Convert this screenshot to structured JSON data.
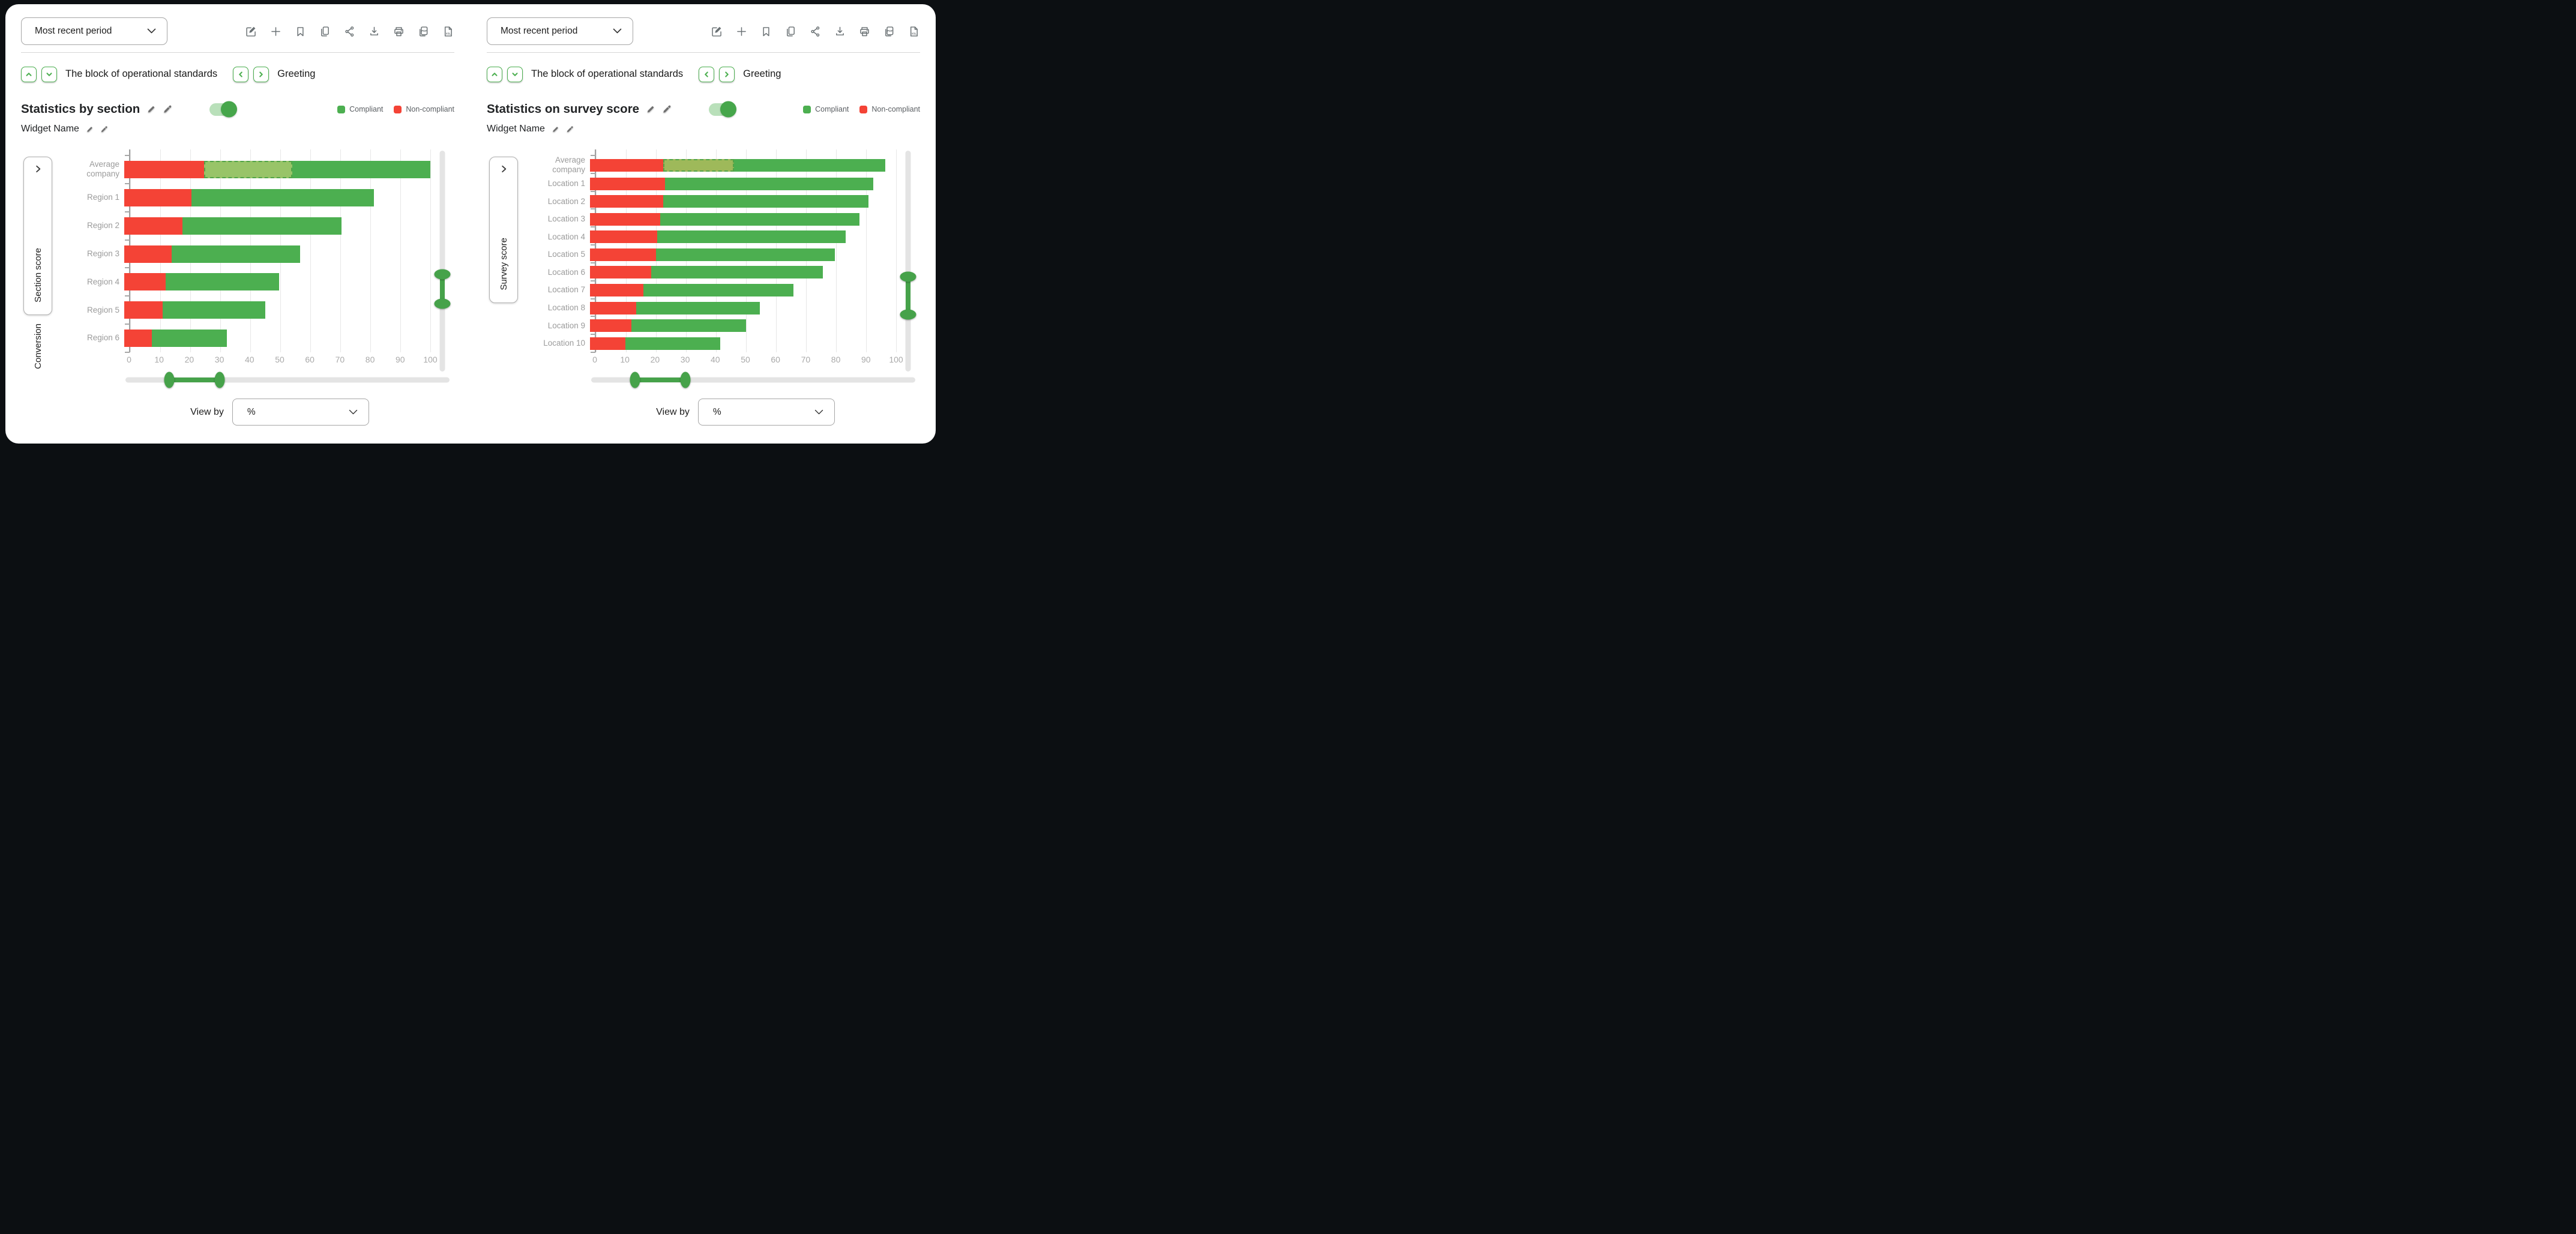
{
  "colors": {
    "accent_green": "#4caf50",
    "slider_green": "#46a24a",
    "compliant": "#4caf50",
    "non_compliant": "#f44336",
    "grid_line": "#e7e7e7",
    "axis_line": "#9e9e9e",
    "category_label_gray": "#9b9b9b",
    "icon_gray": "#6a7174"
  },
  "panels": [
    {
      "period_selector": {
        "value": "Most recent period",
        "icon": "chevron-down-icon"
      },
      "toolbar": [
        {
          "name": "edit"
        },
        {
          "name": "add"
        },
        {
          "name": "bookmark"
        },
        {
          "name": "copy"
        },
        {
          "name": "share"
        },
        {
          "name": "download"
        },
        {
          "name": "print"
        },
        {
          "name": "pdf",
          "label": "PDF"
        },
        {
          "name": "xsl",
          "label": "XSL"
        }
      ],
      "nav": {
        "block_label": "The block of operational standards",
        "page_label": "Greeting"
      },
      "widget": {
        "title": "Statistics by section",
        "subtitle": "Widget Name"
      },
      "legend": [
        {
          "label": "Compliant",
          "color": "#4caf50"
        },
        {
          "label": "Non-compliant",
          "color": "#f44336"
        }
      ],
      "side_panel": {
        "tab_label": "Section score",
        "below_label": "Conversion"
      },
      "view_by": {
        "label": "View by",
        "value": "%"
      },
      "chart_data": {
        "type": "bar",
        "orientation": "horizontal",
        "stacked": true,
        "categories": [
          "Average company",
          "Region 1",
          "Region 2",
          "Region 3",
          "Region 4",
          "Region 5",
          "Region 6"
        ],
        "series": [
          {
            "name": "Non-compliant",
            "color": "#f44336",
            "values": [
              26,
              22,
              19,
              15.5,
              13.5,
              12.5,
              9
            ]
          },
          {
            "name": "Compliant",
            "color": "#4caf50",
            "values": [
              74,
              59.5,
              52,
              42,
              37,
              33.5,
              24.5
            ]
          }
        ],
        "totals": [
          100,
          81.5,
          71,
          57.5,
          50.5,
          46,
          33.5
        ],
        "highlight_range": {
          "category_index": 0,
          "from": 26,
          "to": 55,
          "fill": "#98c468",
          "border": "#52a447"
        },
        "xlim": [
          0,
          100
        ],
        "x_ticks": [
          0,
          10,
          20,
          30,
          40,
          50,
          60,
          70,
          80,
          90,
          100
        ],
        "grid": true,
        "legend_position": "top-right",
        "x_range_slider": {
          "from_pct": 13.5,
          "to_pct": 29
        },
        "y_range_slider": {
          "from_pct": 56,
          "to_pct": 69
        }
      }
    },
    {
      "period_selector": {
        "value": "Most recent period",
        "icon": "chevron-down-icon"
      },
      "toolbar": [
        {
          "name": "edit"
        },
        {
          "name": "add"
        },
        {
          "name": "bookmark"
        },
        {
          "name": "copy"
        },
        {
          "name": "share"
        },
        {
          "name": "download"
        },
        {
          "name": "print"
        },
        {
          "name": "pdf",
          "label": "PDF"
        },
        {
          "name": "xsl",
          "label": "XSL"
        }
      ],
      "nav": {
        "block_label": "The block of operational standards",
        "page_label": "Greeting"
      },
      "widget": {
        "title": "Statistics on survey score",
        "subtitle": "Widget Name"
      },
      "legend": [
        {
          "label": "Compliant",
          "color": "#4caf50"
        },
        {
          "label": "Non-compliant",
          "color": "#f44336"
        }
      ],
      "side_panel": {
        "tab_label": "Survey score"
      },
      "view_by": {
        "label": "View by",
        "value": "%"
      },
      "chart_data": {
        "type": "bar",
        "orientation": "horizontal",
        "stacked": true,
        "categories": [
          "Average company",
          "Location 1",
          "Location 2",
          "Location 3",
          "Location 4",
          "Location 5",
          "Location 6",
          "Location 7",
          "Location 8",
          "Location 9",
          "Location 10"
        ],
        "series": [
          {
            "name": "Non-compliant",
            "color": "#f44336",
            "values": [
              24,
              24.5,
              24,
              23,
              22,
              21.5,
              20,
              17.5,
              15,
              13.5,
              11.5
            ]
          },
          {
            "name": "Compliant",
            "color": "#4caf50",
            "values": [
              72.5,
              68,
              67,
              65,
              61.5,
              58.5,
              56,
              49,
              40.5,
              37.5,
              31
            ]
          }
        ],
        "totals": [
          96.5,
          92.5,
          91,
          88,
          83.5,
          80,
          76,
          66.5,
          55.5,
          51,
          42.5
        ],
        "highlight_range": {
          "category_index": 0,
          "from": 24,
          "to": 47,
          "fill": "#9eb95a",
          "border": "#52a447"
        },
        "xlim": [
          0,
          100
        ],
        "x_ticks": [
          0,
          10,
          20,
          30,
          40,
          50,
          60,
          70,
          80,
          90,
          100
        ],
        "grid": true,
        "legend_position": "top-right",
        "x_range_slider": {
          "from_pct": 13.5,
          "to_pct": 29
        },
        "y_range_slider": {
          "from_pct": 57,
          "to_pct": 74
        }
      }
    }
  ]
}
